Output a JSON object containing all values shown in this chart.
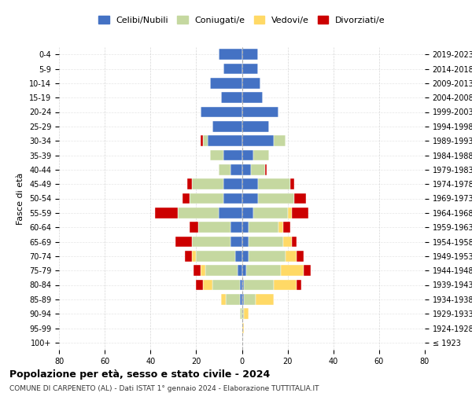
{
  "age_groups": [
    "100+",
    "95-99",
    "90-94",
    "85-89",
    "80-84",
    "75-79",
    "70-74",
    "65-69",
    "60-64",
    "55-59",
    "50-54",
    "45-49",
    "40-44",
    "35-39",
    "30-34",
    "25-29",
    "20-24",
    "15-19",
    "10-14",
    "5-9",
    "0-4"
  ],
  "birth_years": [
    "≤ 1923",
    "1924-1928",
    "1929-1933",
    "1934-1938",
    "1939-1943",
    "1944-1948",
    "1949-1953",
    "1954-1958",
    "1959-1963",
    "1964-1968",
    "1969-1973",
    "1974-1978",
    "1979-1983",
    "1984-1988",
    "1989-1993",
    "1994-1998",
    "1999-2003",
    "2004-2008",
    "2009-2013",
    "2014-2018",
    "2019-2023"
  ],
  "male": {
    "celibi": [
      0,
      0,
      0,
      1,
      1,
      2,
      3,
      5,
      5,
      10,
      8,
      8,
      5,
      8,
      15,
      13,
      18,
      9,
      14,
      8,
      10
    ],
    "coniugati": [
      0,
      0,
      1,
      6,
      12,
      14,
      17,
      17,
      14,
      18,
      15,
      14,
      5,
      6,
      2,
      0,
      0,
      0,
      0,
      0,
      0
    ],
    "vedovi": [
      0,
      0,
      0,
      2,
      4,
      2,
      2,
      0,
      0,
      0,
      0,
      0,
      0,
      0,
      0,
      0,
      0,
      0,
      0,
      0,
      0
    ],
    "divorziati": [
      0,
      0,
      0,
      0,
      3,
      3,
      3,
      7,
      4,
      10,
      3,
      2,
      0,
      0,
      1,
      0,
      0,
      0,
      0,
      0,
      0
    ]
  },
  "female": {
    "nubili": [
      0,
      0,
      0,
      1,
      1,
      2,
      3,
      3,
      3,
      5,
      7,
      7,
      4,
      5,
      14,
      12,
      16,
      9,
      8,
      7,
      7
    ],
    "coniugate": [
      0,
      0,
      1,
      5,
      13,
      15,
      16,
      15,
      13,
      15,
      16,
      14,
      6,
      7,
      5,
      0,
      0,
      0,
      0,
      0,
      0
    ],
    "vedove": [
      0,
      1,
      2,
      8,
      10,
      10,
      5,
      4,
      2,
      2,
      0,
      0,
      0,
      0,
      0,
      0,
      0,
      0,
      0,
      0,
      0
    ],
    "divorziate": [
      0,
      0,
      0,
      0,
      2,
      3,
      3,
      2,
      3,
      7,
      5,
      2,
      1,
      0,
      0,
      0,
      0,
      0,
      0,
      0,
      0
    ]
  },
  "colors": {
    "celibi": "#4472c4",
    "coniugati": "#c5d8a0",
    "vedovi": "#ffd966",
    "divorziati": "#cc0000"
  },
  "xlim": 80,
  "title": "Popolazione per età, sesso e stato civile - 2024",
  "subtitle": "COMUNE DI CARPENETO (AL) - Dati ISTAT 1° gennaio 2024 - Elaborazione TUTTITALIA.IT",
  "ylabel_left": "Fasce di età",
  "legend_labels": [
    "Celibi/Nubili",
    "Coniugati/e",
    "Vedovi/e",
    "Divorziati/e"
  ],
  "bg_color": "#ffffff",
  "grid_color": "#cccccc"
}
